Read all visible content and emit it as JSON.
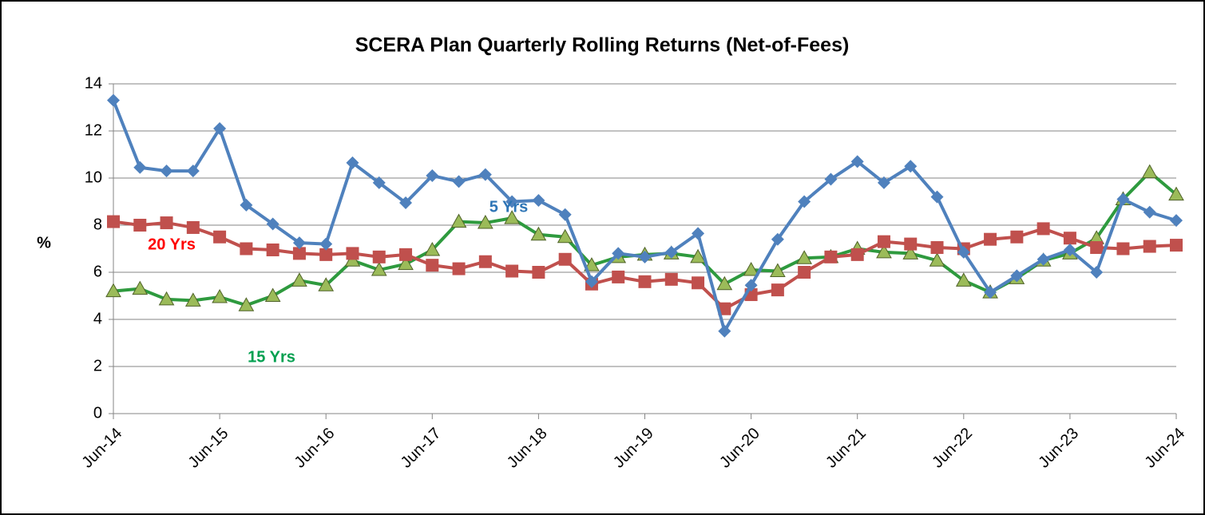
{
  "chart_data": {
    "type": "line",
    "title": "SCERA Plan Quarterly Rolling Returns (Net-of-Fees)",
    "y_label": "%",
    "categories": [
      "Jun-14",
      null,
      null,
      null,
      "Jun-15",
      null,
      null,
      null,
      "Jun-16",
      null,
      null,
      null,
      "Jun-17",
      null,
      null,
      null,
      "Jun-18",
      null,
      null,
      null,
      "Jun-19",
      null,
      null,
      null,
      "Jun-20",
      null,
      null,
      null,
      "Jun-21",
      null,
      null,
      null,
      "Jun-22",
      null,
      null,
      null,
      "Jun-23",
      null,
      null,
      null,
      "Jun-24"
    ],
    "series": [
      {
        "name": "5 Yrs",
        "color": "#4f81bd",
        "label_color": "#2e75b6",
        "marker": "diamond",
        "values": [
          13.3,
          10.45,
          10.3,
          10.3,
          12.1,
          8.85,
          8.05,
          7.25,
          7.2,
          10.65,
          9.8,
          8.95,
          10.1,
          9.85,
          10.15,
          9.0,
          9.05,
          8.45,
          5.6,
          6.8,
          6.65,
          6.85,
          7.65,
          3.5,
          5.45,
          7.4,
          9.0,
          9.95,
          10.7,
          9.8,
          10.5,
          9.2,
          6.85,
          5.15,
          5.85,
          6.55,
          6.95,
          6.0,
          9.1,
          8.55,
          8.2
        ]
      },
      {
        "name": "20 Yrs",
        "color": "#c0504d",
        "label_color": "#ff0000",
        "marker": "square",
        "values": [
          8.15,
          8.0,
          8.1,
          7.9,
          7.5,
          7.0,
          6.95,
          6.8,
          6.75,
          6.8,
          6.65,
          6.75,
          6.3,
          6.15,
          6.45,
          6.05,
          6.0,
          6.55,
          5.5,
          5.8,
          5.6,
          5.7,
          5.55,
          4.45,
          5.05,
          5.25,
          6.0,
          6.65,
          6.75,
          7.3,
          7.2,
          7.05,
          7.0,
          7.4,
          7.5,
          7.85,
          7.45,
          7.05,
          7.0,
          7.1,
          7.15
        ]
      },
      {
        "name": "15 Yrs",
        "color": "#2e9a3e",
        "label_color": "#00a050",
        "marker": "triangle",
        "marker_color": "#9bbb59",
        "values": [
          5.2,
          5.3,
          4.85,
          4.8,
          4.95,
          4.6,
          5.0,
          5.65,
          5.45,
          6.5,
          6.1,
          6.35,
          6.95,
          8.15,
          8.1,
          8.3,
          7.6,
          7.5,
          6.3,
          6.65,
          6.75,
          6.8,
          6.65,
          5.5,
          6.1,
          6.05,
          6.6,
          6.65,
          7.0,
          6.85,
          6.8,
          6.5,
          5.65,
          5.15,
          5.75,
          6.5,
          6.8,
          7.45,
          9.1,
          10.25,
          9.3
        ]
      }
    ],
    "ylim": [
      0,
      14
    ],
    "yticks": [
      0,
      2,
      4,
      6,
      8,
      10,
      12,
      14
    ],
    "grid": true
  }
}
